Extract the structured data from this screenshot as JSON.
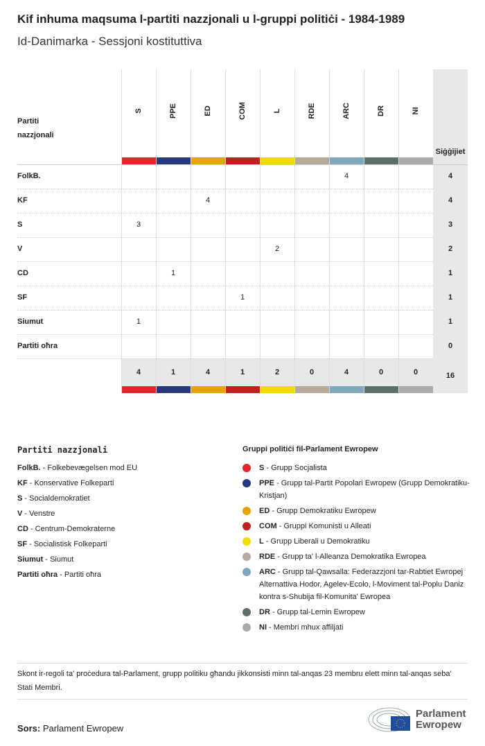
{
  "header": {
    "title": "Kif inhuma maqsuma l-partiti nazzjonali u l-gruppi politiċi - 1984-1989",
    "subtitle": "Id-Danimarka - Sessjoni kostituttiva"
  },
  "chart_data": {
    "type": "table",
    "row_header": "Partiti nazzjonali",
    "total_header": "Siġġijiet",
    "groups": [
      {
        "code": "S",
        "color": "#e3262b"
      },
      {
        "code": "PPE",
        "color": "#243a7d"
      },
      {
        "code": "ED",
        "color": "#e8a20b"
      },
      {
        "code": "COM",
        "color": "#c0201f"
      },
      {
        "code": "L",
        "color": "#f0dc00"
      },
      {
        "code": "RDE",
        "color": "#b5aa9c"
      },
      {
        "code": "ARC",
        "color": "#7fa8c0"
      },
      {
        "code": "DR",
        "color": "#5a7068"
      },
      {
        "code": "NI",
        "color": "#aaaaaa"
      }
    ],
    "rows": [
      {
        "party": "FolkB.",
        "values": [
          null,
          null,
          null,
          null,
          null,
          null,
          4,
          null,
          null
        ],
        "total": 4
      },
      {
        "party": "KF",
        "values": [
          null,
          null,
          4,
          null,
          null,
          null,
          null,
          null,
          null
        ],
        "total": 4
      },
      {
        "party": "S",
        "values": [
          3,
          null,
          null,
          null,
          null,
          null,
          null,
          null,
          null
        ],
        "total": 3
      },
      {
        "party": "V",
        "values": [
          null,
          null,
          null,
          null,
          2,
          null,
          null,
          null,
          null
        ],
        "total": 2
      },
      {
        "party": "CD",
        "values": [
          null,
          1,
          null,
          null,
          null,
          null,
          null,
          null,
          null
        ],
        "total": 1
      },
      {
        "party": "SF",
        "values": [
          null,
          null,
          null,
          1,
          null,
          null,
          null,
          null,
          null
        ],
        "total": 1
      },
      {
        "party": "Siumut",
        "values": [
          1,
          null,
          null,
          null,
          null,
          null,
          null,
          null,
          null
        ],
        "total": 1
      },
      {
        "party": "Partiti oħra",
        "values": [
          null,
          null,
          null,
          null,
          null,
          null,
          null,
          null,
          null
        ],
        "total": 0
      }
    ],
    "column_totals": [
      4,
      1,
      4,
      1,
      2,
      0,
      4,
      0,
      0
    ],
    "grand_total": 16
  },
  "legend": {
    "national_title": "Partiti nazzjonali",
    "national": [
      {
        "code": "FolkB.",
        "name": "Folkebevægelsen mod EU"
      },
      {
        "code": "KF",
        "name": "Konservative Folkeparti"
      },
      {
        "code": "S",
        "name": "Socialdemokratiet"
      },
      {
        "code": "V",
        "name": "Venstre"
      },
      {
        "code": "CD",
        "name": "Centrum-Demokraterne"
      },
      {
        "code": "SF",
        "name": "Socialistisk Folkeparti"
      },
      {
        "code": "Siumut",
        "name": "Siumut"
      },
      {
        "code": "Partiti oħra",
        "name": "Partiti oħra"
      }
    ],
    "groups_title": "Gruppi politiċi fil-Parlament Ewropew",
    "groups": [
      {
        "code": "S",
        "name": "Grupp Socjalista"
      },
      {
        "code": "PPE",
        "name": "Grupp tal-Partit Popolari Ewropew (Grupp Demokratiku-Kristjan)"
      },
      {
        "code": "ED",
        "name": "Grupp Demokratiku Ewropew"
      },
      {
        "code": "COM",
        "name": "Gruppi Komunisti u Alleati"
      },
      {
        "code": "L",
        "name": "Grupp Liberali u Demokratiku"
      },
      {
        "code": "RDE",
        "name": "Grupp ta' l-Alleanza Demokratika Ewropea"
      },
      {
        "code": "ARC",
        "name": "Grupp tal-Qawsalla: Federazzjoni tar-Rabtiet Ewropej Alternattiva Hodor, Agelev-Ecolo, l-Moviment tal-Poplu Daniz kontra s-Shubija fil-Komunita' Ewropea"
      },
      {
        "code": "DR",
        "name": "Grupp tal-Lemin Ewropew"
      },
      {
        "code": "NI",
        "name": "Membri mhux affiljati"
      }
    ]
  },
  "footer": {
    "note": "Skont ir-regoli ta' proċedura tal-Parlament, grupp politiku għandu jikkonsisti minn tal-anqas 23 membru elett minn tal-anqas seba' Stati Membri.",
    "source_label": "Sors:",
    "source": "Parlament Ewropew",
    "logo_text": "Parlament Ewropew"
  }
}
